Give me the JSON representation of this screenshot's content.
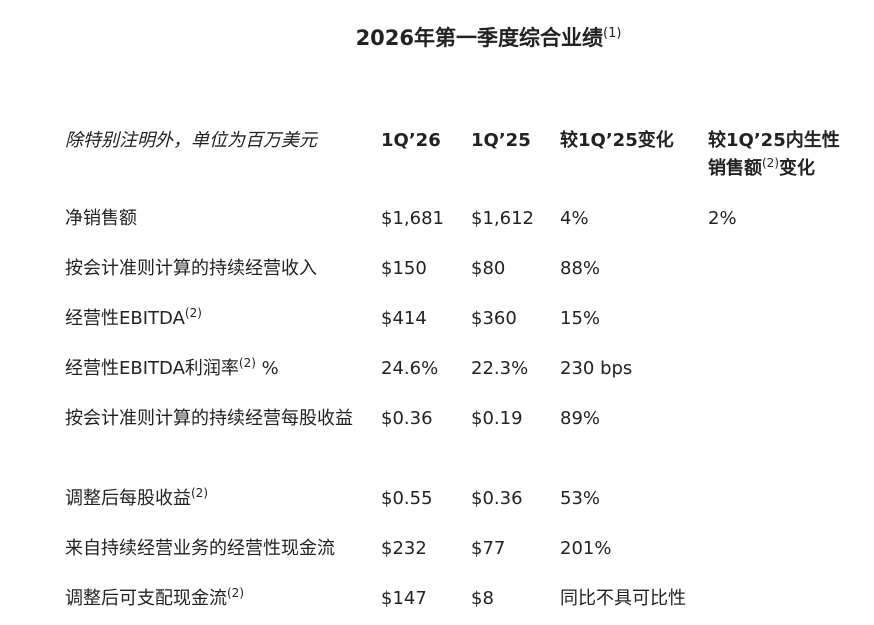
{
  "title": {
    "text": "2026年第一季度综合业绩",
    "note": "(1)"
  },
  "header": {
    "label": "除特别注明外，单位为百万美元",
    "col1": "1Q’26",
    "col2": "1Q’25",
    "col3": "较1Q’25变化",
    "col4_line1": "较1Q’25内生性",
    "col4_line2a": "销售额",
    "col4_note": "(2)",
    "col4_line2b": "变化"
  },
  "rows": [
    {
      "label": "净销售额",
      "note": "",
      "suffix": "",
      "v1": "$1,681",
      "v2": "$1,612",
      "v3": "4%",
      "v4": "2%"
    },
    {
      "label": "按会计准则计算的持续经营收入",
      "note": "",
      "suffix": "",
      "v1": "$150",
      "v2": "$80",
      "v3": "88%",
      "v4": ""
    },
    {
      "label": "经营性EBITDA",
      "note": "(2)",
      "suffix": "",
      "v1": "$414",
      "v2": "$360",
      "v3": "15%",
      "v4": ""
    },
    {
      "label": "经营性EBITDA利润率",
      "note": "(2)",
      "suffix": " %",
      "v1": "24.6%",
      "v2": "22.3%",
      "v3": "230 bps",
      "v4": ""
    },
    {
      "label": "按会计准则计算的持续经营每股收益",
      "note": "",
      "suffix": "",
      "v1": "$0.36",
      "v2": "$0.19",
      "v3": "89%",
      "v4": ""
    },
    {
      "label": "调整后每股收益",
      "note": "(2)",
      "suffix": "",
      "v1": "$0.55",
      "v2": "$0.36",
      "v3": "53%",
      "v4": ""
    },
    {
      "label": "来自持续经营业务的经营性现金流",
      "note": "",
      "suffix": "",
      "v1": "$232",
      "v2": "$77",
      "v3": "201%",
      "v4": ""
    },
    {
      "label": "调整后可支配现金流",
      "note": "(2)",
      "suffix": "",
      "v1": "$147",
      "v2": "$8",
      "v3": "同比不具可比性",
      "v4": ""
    }
  ]
}
